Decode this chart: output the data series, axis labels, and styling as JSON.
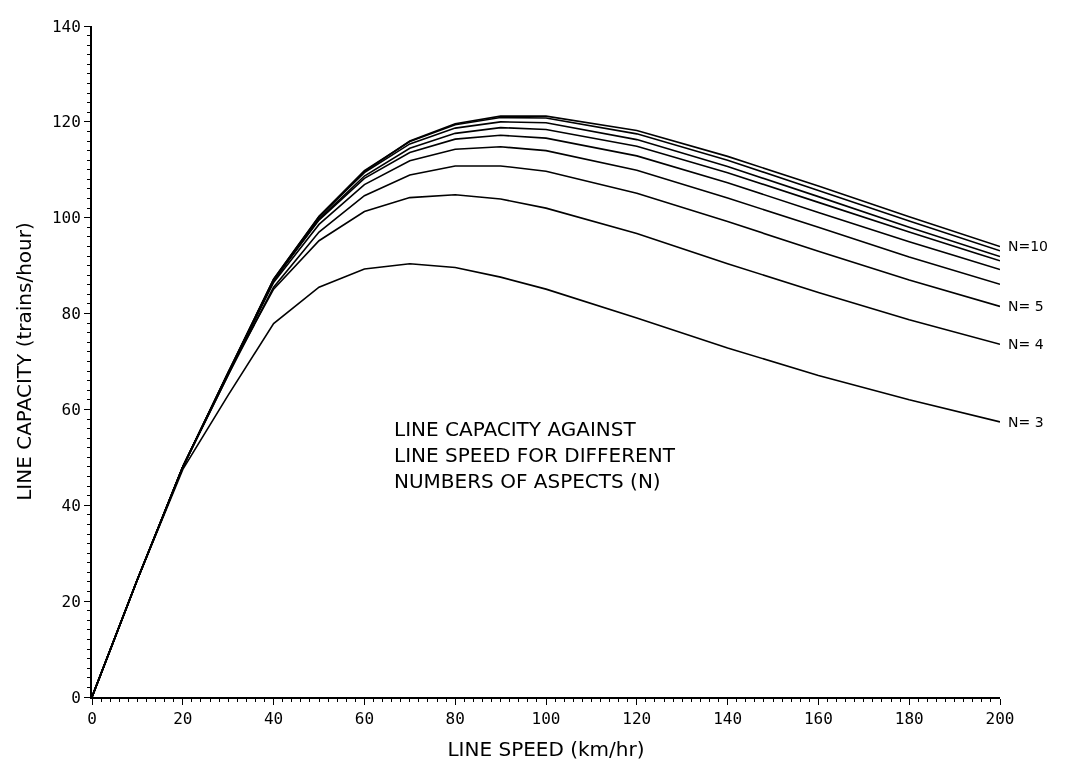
{
  "chart_data": {
    "type": "line",
    "xlabel": "LINE SPEED (km/hr)",
    "ylabel": "LINE CAPACITY (trains/hour)",
    "annotations": [
      "LINE CAPACITY AGAINST\nLINE SPEED FOR DIFFERENT\nNUMBERS OF ASPECTS (N)"
    ],
    "x": [
      0,
      10,
      20,
      30,
      40,
      50,
      60,
      70,
      80,
      90,
      100,
      120,
      140,
      160,
      180,
      200
    ],
    "series": [
      {
        "name": "N= 3",
        "color": "#000000",
        "values": [
          0,
          24.5,
          47.5,
          63.0,
          77.9,
          85.5,
          89.3,
          90.4,
          89.6,
          87.6,
          85.1,
          79.1,
          72.8,
          67.1,
          62.0,
          57.4
        ]
      },
      {
        "name": "N= 4",
        "color": "#000000",
        "values": [
          0,
          24.5,
          48.0,
          67.7,
          85.1,
          95.2,
          101.3,
          104.2,
          104.8,
          103.9,
          102.0,
          96.7,
          90.4,
          84.4,
          78.7,
          73.6
        ]
      },
      {
        "name": "N= 5",
        "color": "#000000",
        "values": [
          0,
          24.5,
          48.0,
          67.2,
          85.5,
          97.0,
          104.6,
          108.9,
          110.8,
          110.8,
          109.7,
          105.1,
          99.2,
          93.0,
          87.0,
          81.5
        ]
      },
      {
        "color": "#000000",
        "values": [
          0,
          24.5,
          48.0,
          67.6,
          86.5,
          98.6,
          106.9,
          111.9,
          114.3,
          114.8,
          114.0,
          109.9,
          104.1,
          98.0,
          91.8,
          86.1
        ]
      },
      {
        "color": "#000000",
        "values": [
          0,
          24.5,
          48.0,
          67.8,
          87.0,
          99.5,
          108.2,
          113.6,
          116.4,
          117.2,
          116.6,
          112.9,
          107.3,
          101.1,
          95.0,
          89.2
        ]
      },
      {
        "color": "#000000",
        "values": [
          0,
          24.5,
          48.0,
          67.5,
          86.9,
          99.7,
          108.7,
          114.5,
          117.6,
          118.8,
          118.4,
          114.9,
          109.4,
          103.2,
          97.0,
          91.0
        ]
      },
      {
        "color": "#000000",
        "values": [
          0,
          24.5,
          48.0,
          67.7,
          87.2,
          100.2,
          109.4,
          115.4,
          118.7,
          120.0,
          119.8,
          116.3,
          110.7,
          104.4,
          98.0,
          91.9
        ]
      },
      {
        "color": "#000000",
        "values": [
          0,
          24.5,
          48.0,
          67.6,
          87.2,
          100.3,
          109.8,
          115.9,
          119.4,
          120.9,
          120.8,
          117.5,
          112.0,
          105.7,
          99.3,
          93.1
        ]
      },
      {
        "name": "N=10",
        "color": "#000000",
        "values": [
          0,
          24.5,
          48.0,
          67.2,
          86.8,
          100.1,
          109.6,
          116.0,
          119.6,
          121.2,
          121.2,
          118.2,
          112.8,
          106.6,
          100.2,
          94.0
        ]
      }
    ],
    "xlim": [
      0,
      200
    ],
    "xticks": [
      0,
      20,
      40,
      60,
      80,
      100,
      120,
      140,
      160,
      180,
      200
    ],
    "ylim": [
      0,
      140
    ],
    "yticks": [
      0,
      20,
      40,
      60,
      80,
      100,
      120,
      140
    ],
    "marker": "none",
    "line_style": "solid"
  }
}
